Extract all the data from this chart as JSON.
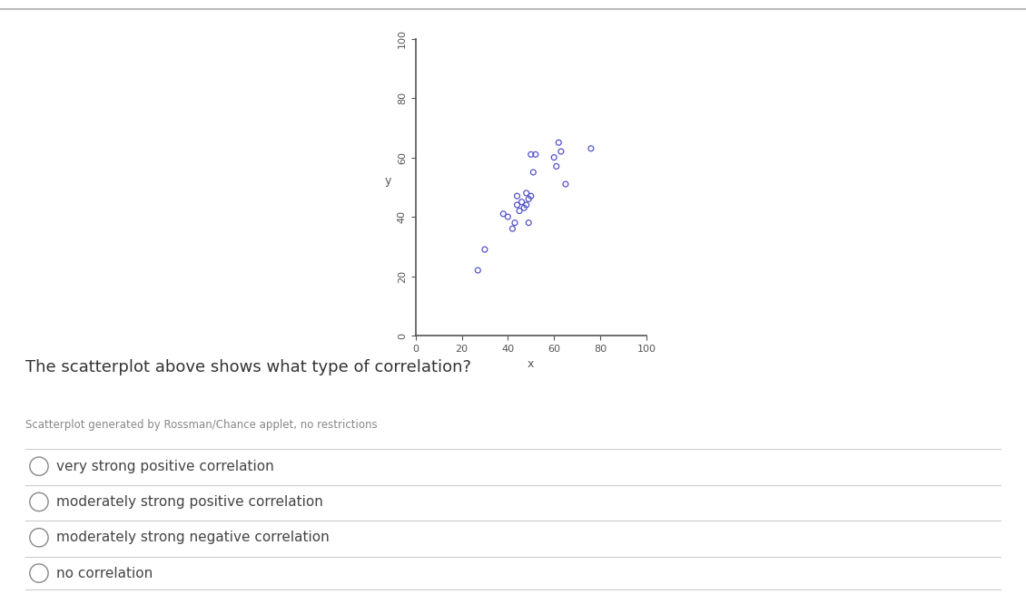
{
  "scatter_x": [
    27,
    30,
    38,
    40,
    42,
    43,
    44,
    44,
    45,
    46,
    47,
    48,
    48,
    49,
    49,
    50,
    50,
    51,
    52,
    60,
    61,
    62,
    63,
    65,
    76
  ],
  "scatter_y": [
    22,
    29,
    41,
    40,
    36,
    38,
    44,
    47,
    42,
    45,
    43,
    44,
    48,
    46,
    38,
    47,
    61,
    55,
    61,
    60,
    57,
    65,
    62,
    51,
    63
  ],
  "xlim": [
    0,
    100
  ],
  "ylim": [
    0,
    100
  ],
  "xticks": [
    0,
    20,
    40,
    60,
    80,
    100
  ],
  "yticks": [
    0,
    20,
    40,
    60,
    80,
    100
  ],
  "xlabel": "x",
  "ylabel": "y",
  "dot_color": "#5555cc",
  "dot_size": 18,
  "background_color": "#ffffff",
  "question_text": "The scatterplot above shows what type of correlation?",
  "attribution_text": "Scatterplot generated by Rossman/Chance applet, no restrictions",
  "options": [
    "very strong positive correlation",
    "moderately strong positive correlation",
    "moderately strong negative correlation",
    "no correlation"
  ],
  "question_fontsize": 13,
  "attribution_fontsize": 8.5,
  "option_fontsize": 11,
  "divider_color": "#cccccc",
  "text_color": "#333333",
  "option_text_color": "#444444",
  "spine_color": "#555555"
}
